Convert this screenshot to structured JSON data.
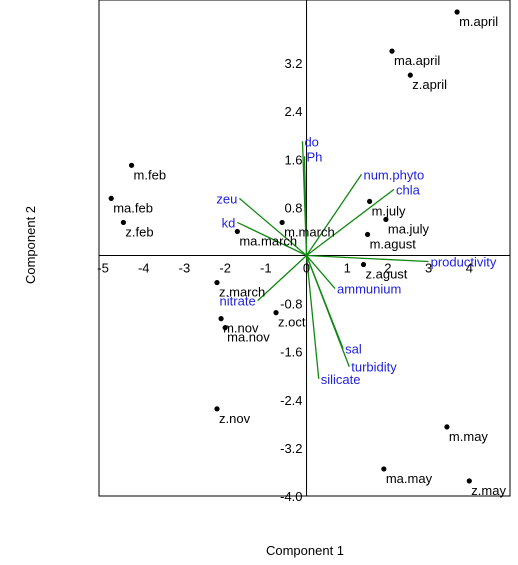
{
  "chart_data": {
    "type": "scatter",
    "subtype": "pca-biplot",
    "xlabel": "Component 1",
    "ylabel": "Component 2",
    "xlim": [
      -5.1,
      5.0
    ],
    "ylim": [
      -4.0,
      4.25
    ],
    "x_ticks": [
      "-5",
      "-4",
      "-3",
      "-2",
      "-1",
      "0",
      "1",
      "2",
      "3",
      "4"
    ],
    "y_ticks": [
      "3.2",
      "2.4",
      "1.6",
      "0.8",
      "-0.8",
      "-1.6",
      "-2.4",
      "-3.2",
      "-4.0"
    ],
    "grid": false,
    "colors": {
      "points": "#000000",
      "loadings": "#118811",
      "variable_labels": "#1f1fdc"
    },
    "points": [
      {
        "label": "m.april",
        "x": 3.7,
        "y": 4.05
      },
      {
        "label": "ma.april",
        "x": 2.1,
        "y": 3.4
      },
      {
        "label": "z.april",
        "x": 2.55,
        "y": 3.0
      },
      {
        "label": "m.feb",
        "x": -4.3,
        "y": 1.5
      },
      {
        "label": "ma.feb",
        "x": -4.8,
        "y": 0.95
      },
      {
        "label": "z.feb",
        "x": -4.5,
        "y": 0.55
      },
      {
        "label": "m.july",
        "x": 1.55,
        "y": 0.9
      },
      {
        "label": "ma.july",
        "x": 1.95,
        "y": 0.6
      },
      {
        "label": "m.agust",
        "x": 1.5,
        "y": 0.35
      },
      {
        "label": "m.march",
        "x": -0.6,
        "y": 0.55
      },
      {
        "label": "ma.march",
        "x": -1.7,
        "y": 0.4
      },
      {
        "label": "z.march",
        "x": -2.2,
        "y": -0.45
      },
      {
        "label": "z.agust",
        "x": 1.4,
        "y": -0.15
      },
      {
        "label": "m.nov",
        "x": -2.1,
        "y": -1.05
      },
      {
        "label": "ma.nov",
        "x": -2.0,
        "y": -1.2
      },
      {
        "label": "z.oct",
        "x": -0.75,
        "y": -0.95
      },
      {
        "label": "z.nov",
        "x": -2.2,
        "y": -2.55
      },
      {
        "label": "m.may",
        "x": 3.45,
        "y": -2.85
      },
      {
        "label": "ma.may",
        "x": 1.9,
        "y": -3.55
      },
      {
        "label": "z.may",
        "x": 4.0,
        "y": -3.75
      }
    ],
    "loadings": [
      {
        "label": "do",
        "x": -0.1,
        "y": 1.9
      },
      {
        "label": "Ph",
        "x": -0.05,
        "y": 1.65
      },
      {
        "label": "num.phyto",
        "x": 1.35,
        "y": 1.35
      },
      {
        "label": "chla",
        "x": 2.15,
        "y": 1.1
      },
      {
        "label": "zeu",
        "x": -1.65,
        "y": 0.95
      },
      {
        "label": "kd",
        "x": -1.7,
        "y": 0.55
      },
      {
        "label": "productivity",
        "x": 3.0,
        "y": -0.1
      },
      {
        "label": "ammunium",
        "x": 0.7,
        "y": -0.55
      },
      {
        "label": "nitrate",
        "x": -1.2,
        "y": -0.75
      },
      {
        "label": "sal",
        "x": 0.9,
        "y": -1.55
      },
      {
        "label": "turbidity",
        "x": 1.05,
        "y": -1.85
      },
      {
        "label": "silicate",
        "x": 0.3,
        "y": -2.05
      }
    ]
  }
}
